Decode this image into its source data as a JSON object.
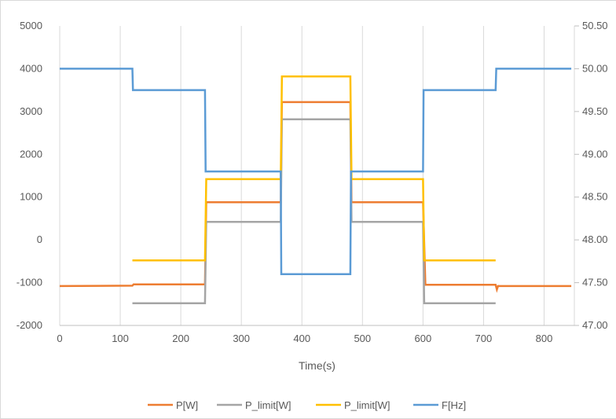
{
  "chart_data": {
    "type": "line",
    "title": "",
    "xlabel": "Time(s)",
    "ylabel": "",
    "y2label": "",
    "xlim": [
      0,
      850
    ],
    "ylim": [
      -2000,
      5000
    ],
    "y2lim": [
      47.0,
      50.5
    ],
    "x_ticks": [
      0,
      100,
      200,
      300,
      400,
      500,
      600,
      700,
      800
    ],
    "y_ticks": [
      -2000,
      -1000,
      0,
      1000,
      2000,
      3000,
      4000,
      5000
    ],
    "y2_ticks": [
      "47.00",
      "47.50",
      "48.00",
      "48.50",
      "49.00",
      "49.50",
      "50.00",
      "50.50"
    ],
    "grid": "vertical",
    "legend_position": "bottom",
    "series": [
      {
        "name": "P[W]",
        "axis": "left",
        "color": "#ED7D31",
        "points": [
          [
            0,
            -1080
          ],
          [
            120,
            -1070
          ],
          [
            122,
            -1040
          ],
          [
            240,
            -1040
          ],
          [
            242,
            880
          ],
          [
            365,
            880
          ],
          [
            367,
            3220
          ],
          [
            480,
            3220
          ],
          [
            482,
            880
          ],
          [
            600,
            880
          ],
          [
            604,
            -1050
          ],
          [
            720,
            -1050
          ],
          [
            722,
            -1160
          ],
          [
            724,
            -1080
          ],
          [
            845,
            -1080
          ]
        ]
      },
      {
        "name": "P_limit[W]",
        "axis": "left",
        "color": "#A5A5A5",
        "points": [
          [
            120,
            -1480
          ],
          [
            240,
            -1480
          ],
          [
            242,
            420
          ],
          [
            365,
            420
          ],
          [
            367,
            2820
          ],
          [
            480,
            2820
          ],
          [
            482,
            420
          ],
          [
            600,
            420
          ],
          [
            602,
            -1480
          ],
          [
            720,
            -1480
          ]
        ]
      },
      {
        "name": "P_limit[W]",
        "axis": "left",
        "color": "#FFC000",
        "points": [
          [
            120,
            -480
          ],
          [
            240,
            -480
          ],
          [
            242,
            1420
          ],
          [
            365,
            1420
          ],
          [
            367,
            3820
          ],
          [
            480,
            3820
          ],
          [
            482,
            1420
          ],
          [
            600,
            1420
          ],
          [
            602,
            -480
          ],
          [
            720,
            -480
          ]
        ]
      },
      {
        "name": "F[Hz]",
        "axis": "right",
        "color": "#5B9BD5",
        "points": [
          [
            0,
            50.0
          ],
          [
            120,
            50.0
          ],
          [
            121,
            49.75
          ],
          [
            240,
            49.75
          ],
          [
            241,
            48.8
          ],
          [
            365,
            48.8
          ],
          [
            366,
            47.6
          ],
          [
            480,
            47.6
          ],
          [
            481,
            48.8
          ],
          [
            600,
            48.8
          ],
          [
            601,
            49.75
          ],
          [
            720,
            49.75
          ],
          [
            721,
            50.0
          ],
          [
            845,
            50.0
          ]
        ]
      }
    ]
  }
}
